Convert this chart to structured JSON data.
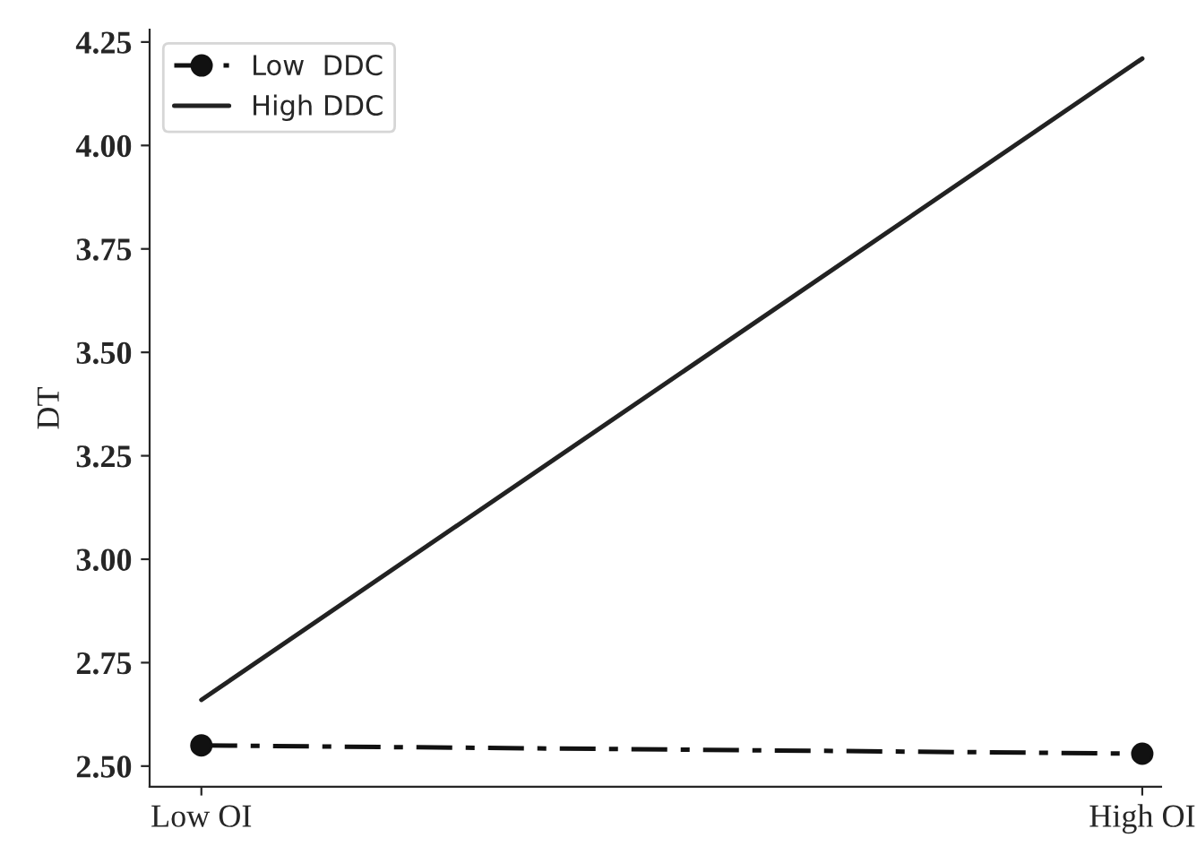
{
  "chart_data": {
    "type": "line",
    "ylabel": "DT",
    "categories": [
      "Low OI",
      "High OI"
    ],
    "series": [
      {
        "name": "Low  DDC",
        "color": "#111111",
        "values": [
          2.55,
          2.53
        ],
        "marker": "circle",
        "line_style": "dashdot"
      },
      {
        "name": "High DDC",
        "color": "#222222",
        "values": [
          2.66,
          4.21
        ],
        "marker": "none",
        "line_style": "solid"
      }
    ],
    "ylim": [
      2.45,
      4.28
    ],
    "yticks": [
      {
        "value": 2.5,
        "label": "2.50"
      },
      {
        "value": 2.75,
        "label": "2.75"
      },
      {
        "value": 3.0,
        "label": "3.00"
      },
      {
        "value": 3.25,
        "label": "3.25"
      },
      {
        "value": 3.5,
        "label": "3.50"
      },
      {
        "value": 3.75,
        "label": "3.75"
      },
      {
        "value": 4.0,
        "label": "4.00"
      },
      {
        "value": 4.25,
        "label": "4.25"
      }
    ],
    "grid": false,
    "legend": "top left"
  }
}
